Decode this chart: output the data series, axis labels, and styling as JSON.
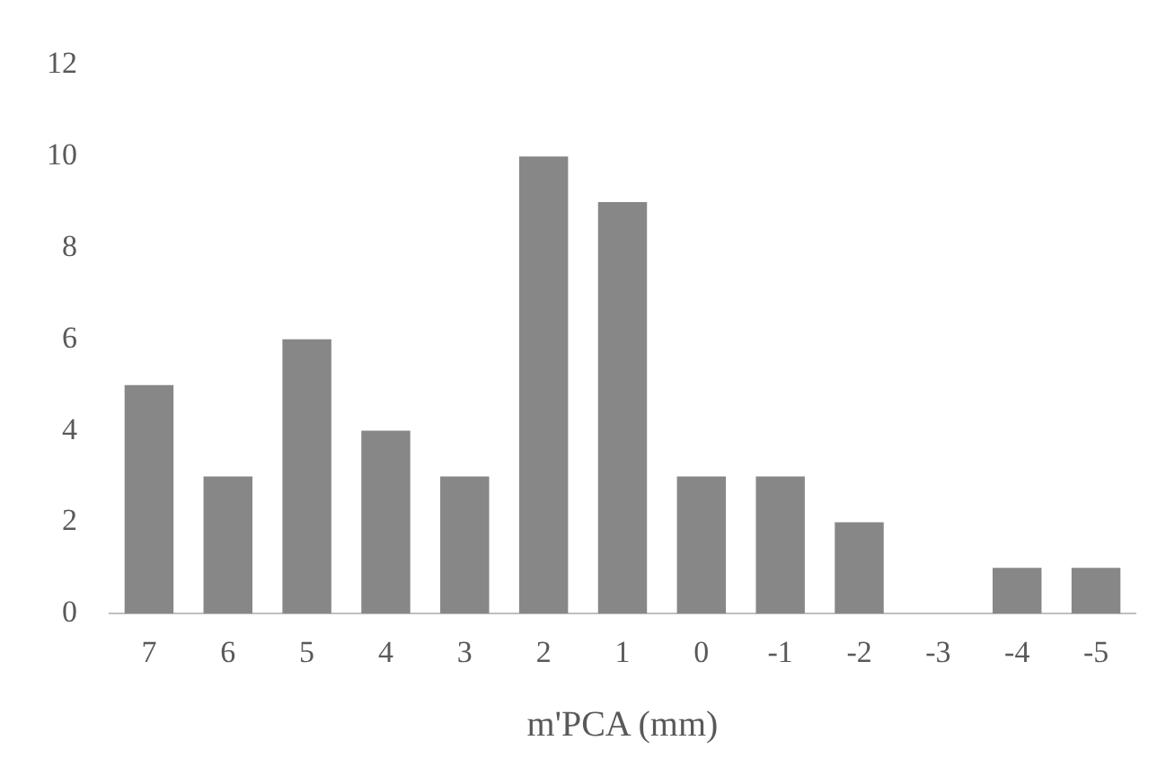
{
  "chart_data": {
    "type": "bar",
    "xlabel": "m'PCA (mm)",
    "categories": [
      "7",
      "6",
      "5",
      "4",
      "3",
      "2",
      "1",
      "0",
      "-1",
      "-2",
      "-3",
      "-4",
      "-5"
    ],
    "values": [
      5,
      3,
      6,
      4,
      3,
      10,
      9,
      3,
      3,
      2,
      0,
      1,
      1
    ],
    "color": "#878787",
    "ylim": [
      0,
      12
    ],
    "yticks": [
      0,
      2,
      4,
      6,
      8,
      10,
      12
    ],
    "grid": false,
    "legend": false
  }
}
